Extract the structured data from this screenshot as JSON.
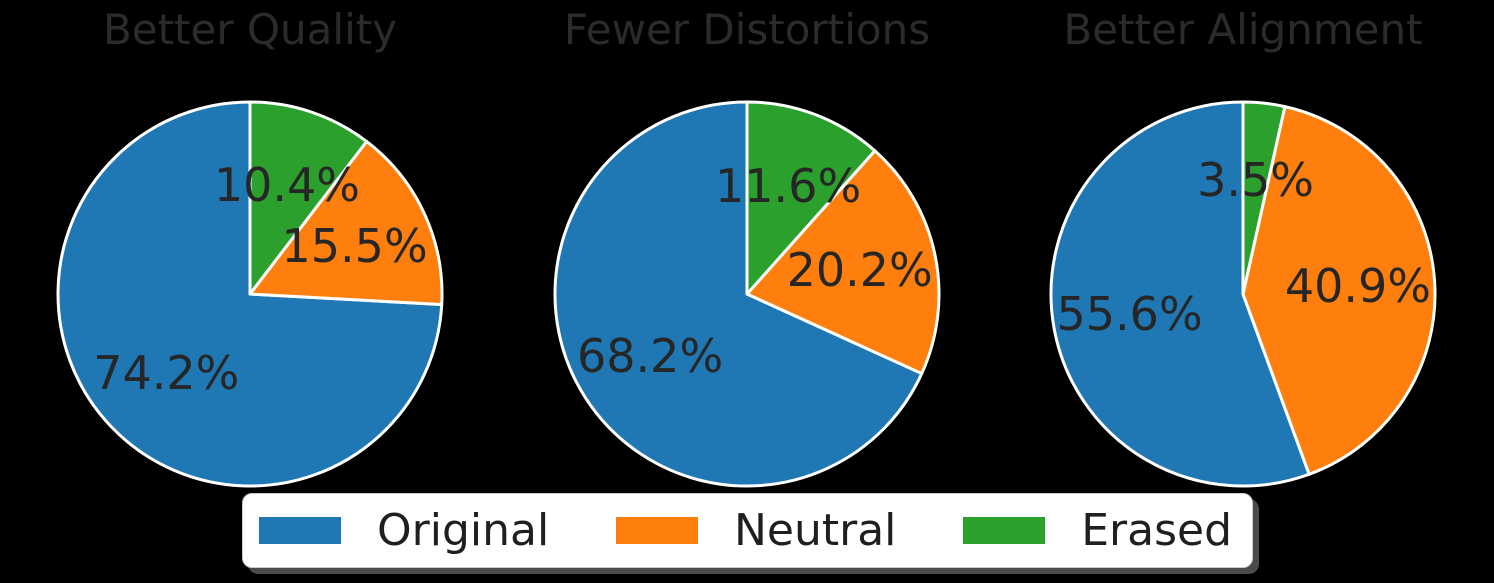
{
  "page": {
    "background": "#000000",
    "text_color": "#262626",
    "wedge_edge_color": "#ffffff"
  },
  "legend": {
    "position": "bottom-center",
    "background": "#ffffff",
    "border_color": "#cccccc",
    "items": [
      {
        "label": "Original",
        "color": "#1f77b4"
      },
      {
        "label": "Neutral",
        "color": "#ff7f0e"
      },
      {
        "label": "Erased",
        "color": "#2ca02c"
      }
    ]
  },
  "chart_data": [
    {
      "type": "pie",
      "title": "Better Quality",
      "labels": [
        "Original",
        "Neutral",
        "Erased"
      ],
      "values": [
        74.2,
        15.5,
        10.4
      ],
      "pct_labels": [
        "74.2%",
        "15.5%",
        "10.4%"
      ],
      "colors": [
        "#1f77b4",
        "#ff7f0e",
        "#2ca02c"
      ],
      "startangle": 90,
      "counterclock": true,
      "pctdistance": 0.6
    },
    {
      "type": "pie",
      "title": "Fewer Distortions",
      "labels": [
        "Original",
        "Neutral",
        "Erased"
      ],
      "values": [
        68.2,
        20.2,
        11.6
      ],
      "pct_labels": [
        "68.2%",
        "20.2%",
        "11.6%"
      ],
      "colors": [
        "#1f77b4",
        "#ff7f0e",
        "#2ca02c"
      ],
      "startangle": 90,
      "counterclock": true,
      "pctdistance": 0.6
    },
    {
      "type": "pie",
      "title": "Better Alignment",
      "labels": [
        "Original",
        "Neutral",
        "Erased"
      ],
      "values": [
        55.6,
        40.9,
        3.5
      ],
      "pct_labels": [
        "55.6%",
        "40.9%",
        "3.5%"
      ],
      "colors": [
        "#1f77b4",
        "#ff7f0e",
        "#2ca02c"
      ],
      "startangle": 90,
      "counterclock": true,
      "pctdistance": 0.6
    }
  ]
}
